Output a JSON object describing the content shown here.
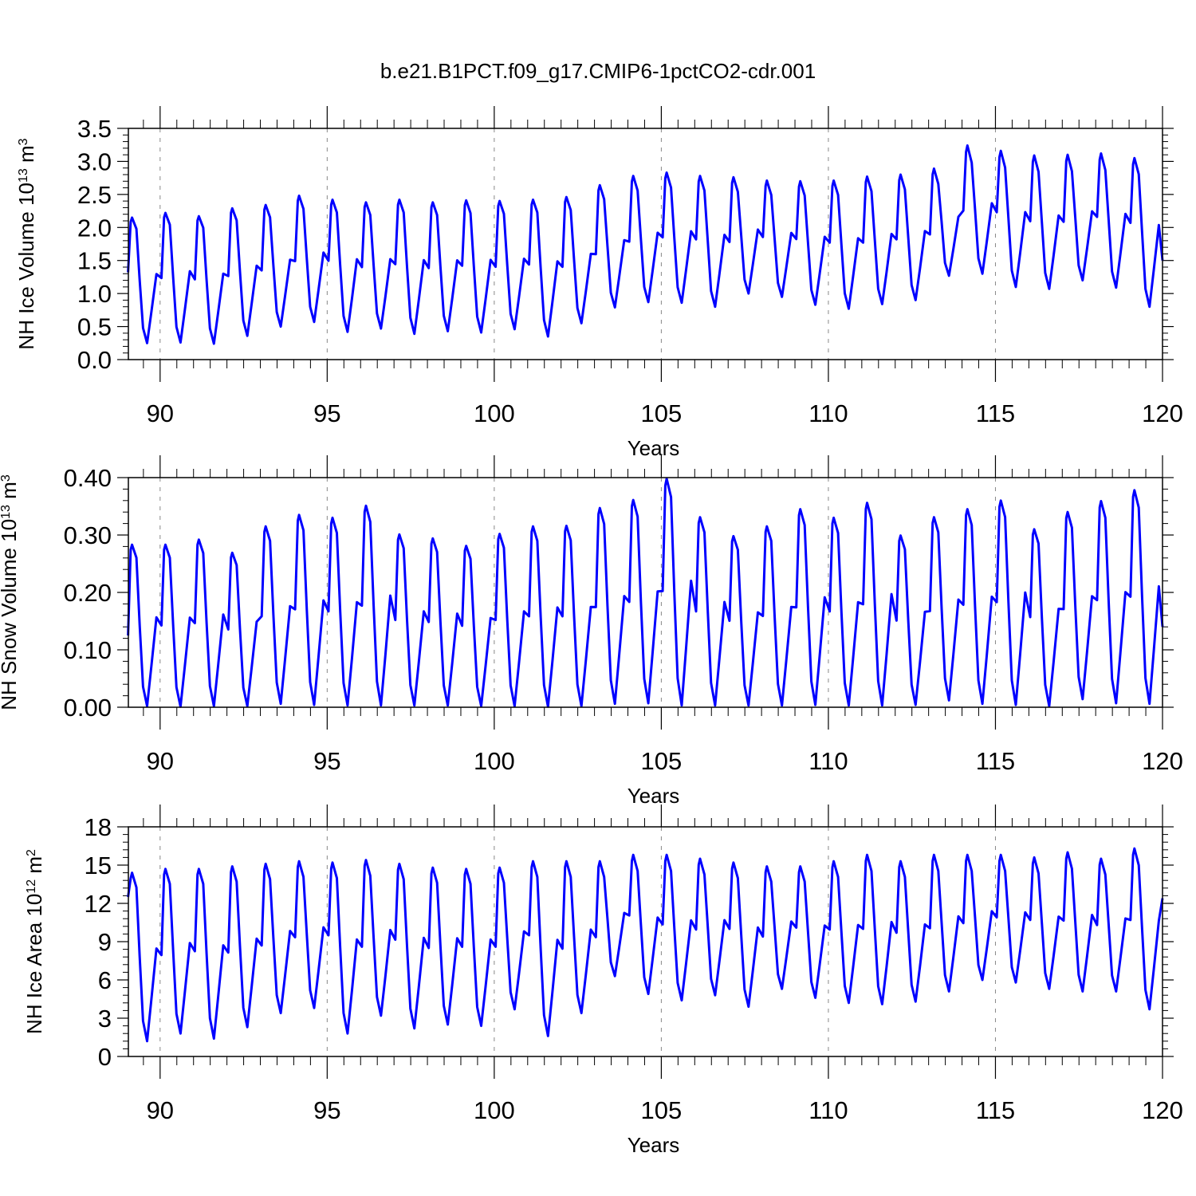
{
  "title": "b.e21.B1PCT.f09_g17.CMIP6-1pctCO2-cdr.001",
  "colors": {
    "line": "#0000ff",
    "axis": "#000000",
    "grid": "#888888"
  },
  "chart_data": [
    {
      "type": "line",
      "title": "",
      "ylabel": {
        "main": "NH Ice Volume 10",
        "sup": "13",
        "mid": " m",
        "sup2": "3"
      },
      "xlabel": "Years",
      "xlim": [
        89.05,
        120.0
      ],
      "ylim": [
        0.0,
        3.5
      ],
      "x_ticks": [
        90,
        95,
        100,
        105,
        110,
        115,
        120
      ],
      "y_ticks": [
        "0.0",
        "0.5",
        "1.0",
        "1.5",
        "2.0",
        "2.5",
        "3.0",
        "3.5"
      ],
      "grid": "vertical dashed at major x ticks",
      "series": [
        {
          "cycle": "annual",
          "start_year": 89.04,
          "start_value": 1.32,
          "end_value": 1.5,
          "annual_maxima": [
            2.15,
            2.22,
            2.17,
            2.29,
            2.34,
            2.48,
            2.42,
            2.38,
            2.42,
            2.38,
            2.41,
            2.4,
            2.42,
            2.46,
            2.64,
            2.78,
            2.83,
            2.78,
            2.76,
            2.71,
            2.7,
            2.71,
            2.77,
            2.8,
            2.89,
            3.24,
            3.16,
            3.09,
            3.1,
            3.12,
            3.05
          ],
          "annual_minima": [
            0.25,
            0.26,
            0.24,
            0.36,
            0.5,
            0.57,
            0.42,
            0.47,
            0.39,
            0.43,
            0.41,
            0.46,
            0.35,
            0.55,
            0.79,
            0.87,
            0.86,
            0.8,
            1.0,
            0.95,
            0.83,
            0.77,
            0.84,
            0.9,
            1.27,
            1.3,
            1.1,
            1.07,
            1.2,
            1.09,
            0.8
          ]
        }
      ]
    },
    {
      "type": "line",
      "title": "",
      "ylabel": {
        "main": "NH Snow Volume 10",
        "sup": "13",
        "mid": " m",
        "sup2": "3"
      },
      "xlabel": "Years",
      "xlim": [
        89.05,
        120.0
      ],
      "ylim": [
        0.0,
        0.4
      ],
      "x_ticks": [
        90,
        95,
        100,
        105,
        110,
        115,
        120
      ],
      "y_ticks": [
        "0.00",
        "0.10",
        "0.20",
        "0.30",
        "0.40"
      ],
      "grid": "vertical dashed at major x ticks",
      "series": [
        {
          "cycle": "annual",
          "start_year": 89.04,
          "start_value": 0.125,
          "end_value": 0.14,
          "annual_maxima": [
            0.283,
            0.283,
            0.292,
            0.269,
            0.315,
            0.335,
            0.33,
            0.351,
            0.301,
            0.294,
            0.281,
            0.302,
            0.315,
            0.316,
            0.347,
            0.361,
            0.398,
            0.331,
            0.298,
            0.315,
            0.345,
            0.33,
            0.356,
            0.299,
            0.331,
            0.345,
            0.36,
            0.31,
            0.34,
            0.359,
            0.378
          ],
          "annual_minima": [
            0.002,
            0.001,
            0.002,
            0.002,
            0.006,
            0.004,
            0.003,
            0.003,
            0.003,
            0.003,
            0.002,
            0.002,
            0.001,
            0.002,
            0.006,
            0.007,
            0.003,
            0.003,
            0.003,
            0.003,
            0.004,
            0.003,
            0.003,
            0.004,
            0.012,
            0.006,
            0.004,
            0.002,
            0.014,
            0.007,
            0.006
          ]
        }
      ]
    },
    {
      "type": "line",
      "title": "",
      "ylabel": {
        "main": "NH Ice Area 10",
        "sup": "12",
        "mid": " m",
        "sup2": "2"
      },
      "xlabel": "Years",
      "xlim": [
        89.05,
        120.0
      ],
      "ylim": [
        0,
        18
      ],
      "x_ticks": [
        90,
        95,
        100,
        105,
        110,
        115,
        120
      ],
      "y_ticks": [
        "0",
        "3",
        "6",
        "9",
        "12",
        "15",
        "18"
      ],
      "grid": "vertical dashed at major x ticks",
      "series": [
        {
          "cycle": "annual",
          "start_year": 89.04,
          "start_value": 12.5,
          "end_value": 12.4,
          "annual_maxima": [
            14.4,
            14.7,
            14.7,
            14.9,
            15.1,
            15.3,
            15.2,
            15.4,
            15.1,
            14.8,
            14.7,
            14.8,
            15.3,
            15.3,
            15.3,
            15.8,
            15.8,
            15.5,
            15.2,
            14.9,
            14.9,
            15.3,
            15.8,
            15.3,
            15.8,
            15.8,
            15.8,
            15.6,
            16.0,
            15.5,
            16.3
          ],
          "annual_minima": [
            1.2,
            1.8,
            1.4,
            2.3,
            3.4,
            3.8,
            1.8,
            3.2,
            2.2,
            2.5,
            2.4,
            3.7,
            1.6,
            3.4,
            6.3,
            4.9,
            4.4,
            4.8,
            3.9,
            5.3,
            4.6,
            4.2,
            4.1,
            4.3,
            5.1,
            6.0,
            5.8,
            5.3,
            5.1,
            5.1,
            3.7
          ]
        }
      ]
    }
  ]
}
